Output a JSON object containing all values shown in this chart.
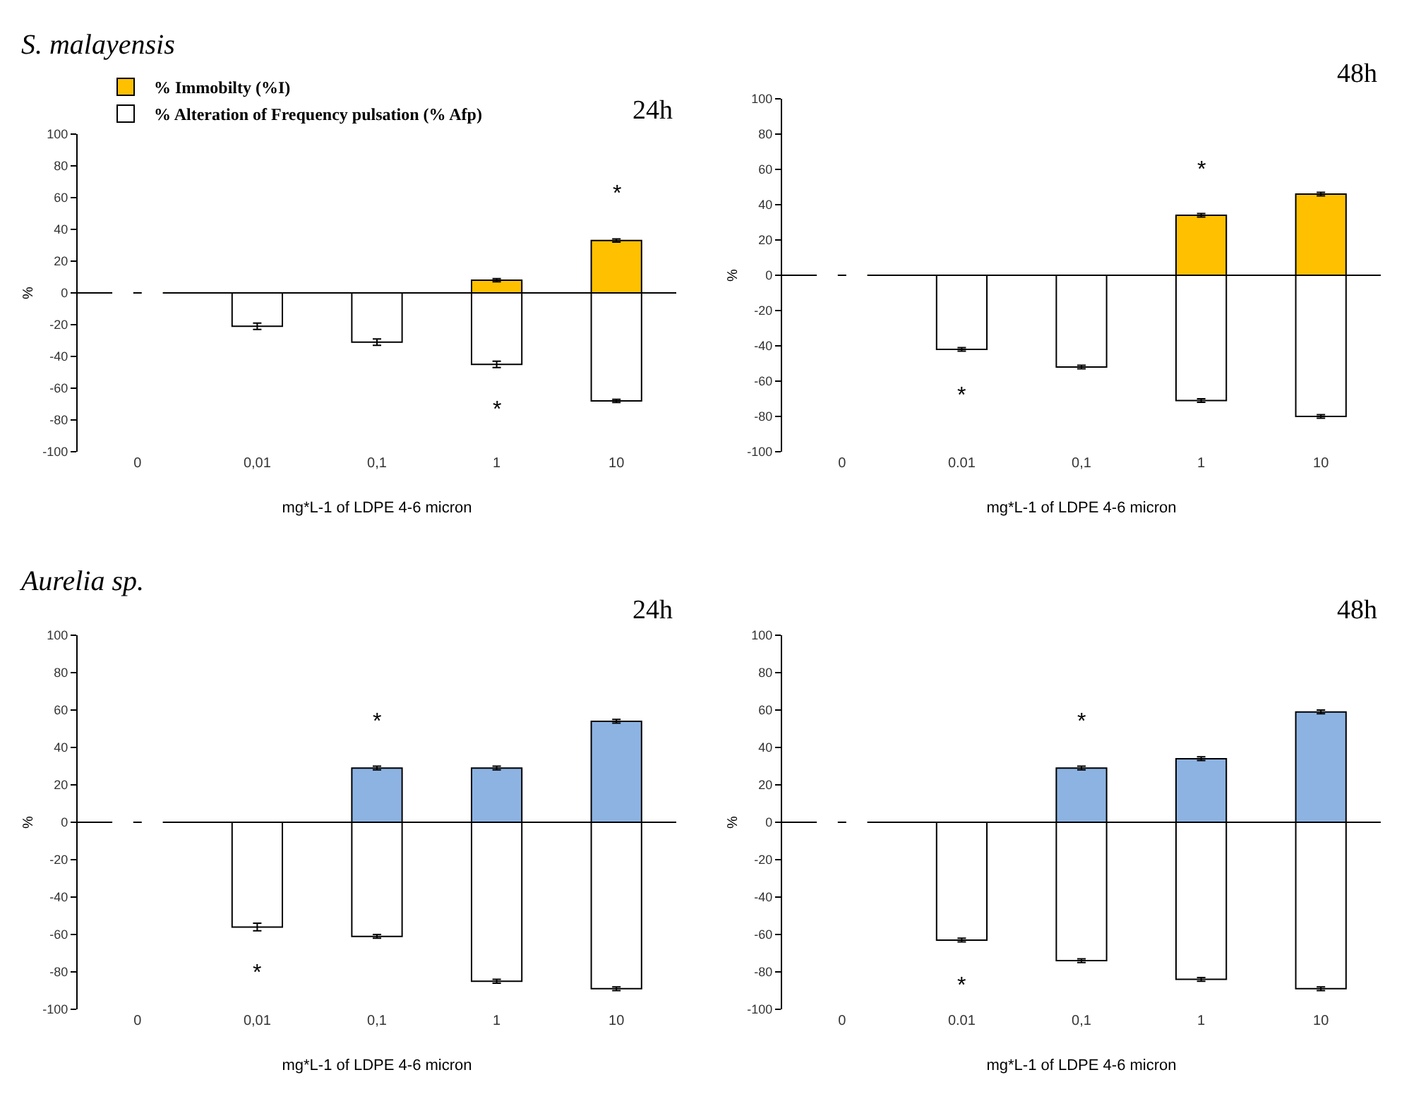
{
  "chart_data": [
    {
      "type": "bar",
      "title": "S. malayensis",
      "subtitle": "24h",
      "xlabel": "mg*L-1 of LDPE 4-6 micron",
      "ylabel": "%",
      "categories": [
        "0",
        "0,01",
        "0,1",
        "1",
        "10"
      ],
      "stacked": true,
      "legend": "top",
      "ylim": [
        -100,
        100
      ],
      "yticks": [
        -100,
        -80,
        -60,
        -40,
        -20,
        0,
        20,
        40,
        60,
        80,
        100
      ],
      "series": [
        {
          "name": "% Immobilty (%I)",
          "color": "#ffc000",
          "values": [
            0,
            0,
            0,
            8,
            33
          ],
          "errors": [
            null,
            null,
            null,
            1,
            1
          ]
        },
        {
          "name": "% Alteration of Frequency pulsation (% Afp)",
          "color": "#ffffff",
          "values": [
            0,
            -21,
            -31,
            -45,
            -68
          ],
          "errors": [
            null,
            2,
            2,
            2,
            1
          ]
        }
      ],
      "annotations": [
        {
          "text": "*",
          "x": "10",
          "y": 33
        },
        {
          "text": "*",
          "x": "1",
          "y": -45
        }
      ]
    },
    {
      "type": "bar",
      "subtitle": "48h",
      "xlabel": "mg*L-1 of LDPE 4-6 micron",
      "ylabel": "%",
      "categories": [
        "0",
        "0.01",
        "0,1",
        "1",
        "10"
      ],
      "stacked": true,
      "ylim": [
        -100,
        100
      ],
      "yticks": [
        -100,
        -80,
        -60,
        -40,
        -20,
        0,
        20,
        40,
        60,
        80,
        100
      ],
      "series": [
        {
          "color": "#ffc000",
          "values": [
            0,
            0,
            0,
            34,
            46
          ],
          "errors": [
            null,
            null,
            null,
            1,
            1
          ]
        },
        {
          "color": "#ffffff",
          "values": [
            0,
            -42,
            -52,
            -71,
            -80
          ],
          "errors": [
            null,
            1,
            1,
            1,
            1
          ]
        }
      ],
      "annotations": [
        {
          "text": "*",
          "x": "1",
          "y": 34
        },
        {
          "text": "*",
          "x": "0.01",
          "y": -42
        }
      ]
    },
    {
      "type": "bar",
      "title": "Aurelia sp.",
      "subtitle": "24h",
      "xlabel": "mg*L-1 of LDPE 4-6 micron",
      "ylabel": "%",
      "categories": [
        "0",
        "0,01",
        "0,1",
        "1",
        "10"
      ],
      "stacked": true,
      "ylim": [
        -100,
        100
      ],
      "yticks": [
        -100,
        -80,
        -60,
        -40,
        -20,
        0,
        20,
        40,
        60,
        80,
        100
      ],
      "series": [
        {
          "color": "#8db3e2",
          "values": [
            0,
            0,
            29,
            29,
            54
          ],
          "errors": [
            null,
            null,
            1,
            1,
            1
          ]
        },
        {
          "color": "#ffffff",
          "values": [
            0,
            -56,
            -61,
            -85,
            -89
          ],
          "errors": [
            null,
            2,
            1,
            1,
            1
          ]
        }
      ],
      "annotations": [
        {
          "text": "*",
          "x": "0,1",
          "y": 29
        },
        {
          "text": "*",
          "x": "0,01",
          "y": -56
        }
      ]
    },
    {
      "type": "bar",
      "subtitle": "48h",
      "xlabel": "mg*L-1 of LDPE 4-6 micron",
      "ylabel": "%",
      "categories": [
        "0",
        "0.01",
        "0,1",
        "1",
        "10"
      ],
      "stacked": true,
      "ylim": [
        -100,
        100
      ],
      "yticks": [
        -100,
        -80,
        -60,
        -40,
        -20,
        0,
        20,
        40,
        60,
        80,
        100
      ],
      "series": [
        {
          "color": "#8db3e2",
          "values": [
            0,
            0,
            29,
            34,
            59
          ],
          "errors": [
            null,
            null,
            1,
            1,
            1
          ]
        },
        {
          "color": "#ffffff",
          "values": [
            0,
            -63,
            -74,
            -84,
            -89
          ],
          "errors": [
            null,
            1,
            1,
            1,
            1
          ]
        }
      ],
      "annotations": [
        {
          "text": "*",
          "x": "0,1",
          "y": 29
        },
        {
          "text": "*",
          "x": "0.01",
          "y": -63
        }
      ]
    }
  ]
}
